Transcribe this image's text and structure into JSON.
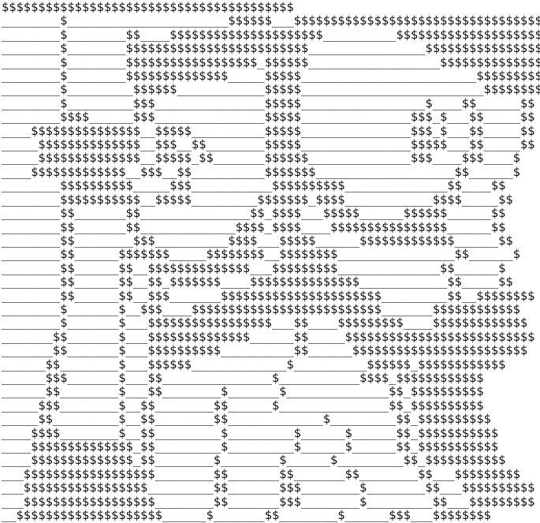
{
  "page": {
    "kind": "ascii-art",
    "description": "Dollar-sign and underscore ASCII art on a plain white page",
    "background_color": "#ffffff",
    "text_color": "#111111",
    "glyphs_used": [
      "$",
      "_"
    ]
  },
  "ascii_art": {
    "rows": 38,
    "columns": 74,
    "lines": [
      "$$$$$$$$$$$$$$$$$$$$$$$$$$$$$$$$$$$$$$$$",
      "________$______________________$$$$$$___$$$$$$$$$$$$$$$$$$$$$$$$$$$$$$$$$$",
      "________$________$$____$$$$$$$$$$$$$$$$$$$$$__________$$$$$$$$$$$$$$$$$$$$",
      "________$________$$$$$$$$$$$$$$$$$$$$$$$$$________________$$$$$$$$$$$$$$$$",
      "________$________$$$$$$$$$$$$$$$$$$_$$$$$$__________________$$$$$$$$$$$$$$",
      "________$________$$$$$$$$$$$$$$_____$$$$$________________________$$$$$$$$$",
      "________$_________$$$$$$____________$$$$$_________________________$$$$$$$$",
      "________$_________$$$_______________$$$$$_________________$____$$______$$",
      "________$$$$______$$$_______________$$$$$_______________$$$_$___$$_____$$",
      "____$$$$$$$$$$$$$$$__$$$$$__________$$$$$_______________$$$_$___$$_____$$",
      "_____$$$$$$$$$$$$$$__$$$__$$________$$$$$_______________$$$$$___$$_____$$",
      "_____$$$$$$$$$$$$$$__$$$$$_$$_______$$$$$$______________$$$____$$$____$",
      "____$$$$$$$$$$$$$__$$$__$$__________$$$$$$$___________________$$______$",
      "________$$$$$$$$$$_____$$$___________$$$$$$$$$$______________$$____$$",
      "________$$$$$$$$$$$__$$$$$_________$$$$$$$_$$$$____________$$$$_____$$",
      "________$$_______$$_______________$$_$$$$___$$$$$______$$$$$$______$$",
      "________$$_______$$_____________$$$$_$$$$____$$$$$$$$$$$$$$$$______$$",
      "________$$________$$$__________$$$$___$$$$$______$$$$$$$$$$$$$______$$",
      "________$$______$$$$$$$_____$$$$$$$$__$$$$$$$$________________$$______$",
      "________$$______$$__$$$$$$$$$$$$$$___$$$$$$$$$______________$$______$",
      "________$$______$$__$$_$$$$$$$____$$$$$$$$$$$$$$$____________$$_____$$",
      "________$$______$$__$$$_______$$$$$$$$$$$$$$$$$$$$$$_________$$__$$$$$$$$",
      "________$_______$__$$$____$$$$$$$$$$$$$$$$$$$$$$$$$$_______$$$$$$$$$$$$",
      "________$_______$___$$$$$$$$$$$$$$$$$___$$____$$$$$$$$$____$$$$$$$$$$$$$",
      "_______$$_______$___$$$$$$$$$$$$$$______$$_____$$$$$$$$$$$$$$$$$$$$$$$$$$",
      "_______$$_______$___$$$$$$$$$$__________$$______$$$$$$$$$$$$$$$$$$$$$$$$",
      "______$$________$___$$$$$$_____________$__________$$$$$$_$$$$$$$$$$$$",
      "______$$$_______$___$$_______________$___________$$$$_$$$$$$$$$$$$",
      "______$$________$___$$________$_______$______________$$_$$$$$$$$$$",
      "_____$$$________$__$$________$$______$_______________$$_$$$$$$$$$$",
      "_____$$_________$__$$________$$_____________$_________$$_$$$$$$$$$$",
      "____$$$$________$__$$_________$_________$______$______$$_$$$$$$$$$$$",
      "____$$$$$$$$$$$$$$_$$_________$_________$______$______$$_$$$$$$$$$$$",
      "____$$$$$$$$$$$$$$_$$________$________$______$_________$$_$$$$$$$$$$$",
      "___$$$$$$$$$$$$$$$$$$________$$_______$$_______$$________$$___$$$$$$$$$",
      "___$$$$$$$$$$$$$$$$$_________$$_______$$$________$________$$___$$$$$$$$$$",
      "___$$$$$$$$$$$$$$$$$$________$$_______$$$________$_________$$___$$$$$$$$$",
      "__$$$$$$$$$$$$$$$$$$$$______$_______$$________$______$$$___$$$$$$$$"
    ]
  }
}
